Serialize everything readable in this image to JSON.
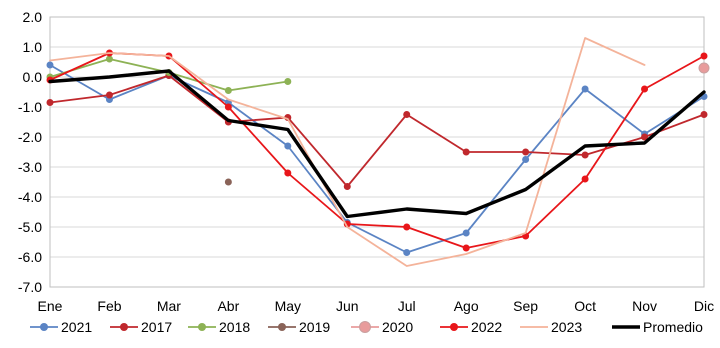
{
  "chart_data": {
    "type": "line",
    "categories": [
      "Ene",
      "Feb",
      "Mar",
      "Abr",
      "May",
      "Jun",
      "Jul",
      "Ago",
      "Sep",
      "Oct",
      "Nov",
      "Dic"
    ],
    "ylim": [
      -7.0,
      2.0
    ],
    "yticks": [
      2.0,
      1.0,
      0.0,
      -1.0,
      -2.0,
      -3.0,
      -4.0,
      -5.0,
      -6.0,
      -7.0
    ],
    "ytick_labels": [
      "2.0",
      "1.0",
      "0.0",
      "-1.0",
      "-2.0",
      "-3.0",
      "-4.0",
      "-5.0",
      "-6.0",
      "-7.0"
    ],
    "grid": true,
    "legend_position": "bottom",
    "series": [
      {
        "name": "2021",
        "color": "#5B84C4",
        "width": 1.8,
        "marker": true,
        "values": [
          0.4,
          -0.75,
          0.05,
          -0.85,
          -2.3,
          -4.85,
          -5.85,
          -5.2,
          -2.75,
          -0.4,
          -1.9,
          -0.65
        ]
      },
      {
        "name": "2017",
        "color": "#C0282D",
        "width": 1.8,
        "marker": true,
        "values": [
          -0.85,
          -0.6,
          0.05,
          -1.5,
          -1.35,
          -3.65,
          -1.25,
          -2.5,
          -2.5,
          -2.6,
          -2.0,
          -1.25
        ]
      },
      {
        "name": "2018",
        "color": "#8DB255",
        "width": 1.8,
        "marker": true,
        "values": [
          0.0,
          0.6,
          0.15,
          -0.45,
          -0.15,
          null,
          null,
          null,
          null,
          null,
          null,
          null
        ]
      },
      {
        "name": "2019",
        "color": "#8A6358",
        "width": 1.8,
        "marker": true,
        "values": [
          null,
          null,
          null,
          -3.5,
          null,
          null,
          null,
          null,
          null,
          null,
          null,
          null
        ]
      },
      {
        "name": "2020",
        "color": "#E89C9C",
        "width": 1.8,
        "marker": true,
        "big_marker": true,
        "values": [
          null,
          null,
          null,
          null,
          null,
          null,
          null,
          null,
          null,
          null,
          null,
          0.3
        ]
      },
      {
        "name": "2022",
        "color": "#E8161A",
        "width": 1.8,
        "marker": true,
        "values": [
          -0.1,
          0.8,
          0.7,
          -1.0,
          -3.2,
          -4.9,
          -5.0,
          -5.7,
          -5.3,
          -3.4,
          -0.4,
          0.7
        ]
      },
      {
        "name": "2023",
        "color": "#F4B39A",
        "width": 1.8,
        "marker": false,
        "values": [
          0.55,
          0.8,
          0.7,
          -0.75,
          -1.4,
          -5.0,
          -6.3,
          -5.9,
          -5.2,
          1.3,
          0.4,
          null
        ]
      },
      {
        "name": "Promedio",
        "color": "#000000",
        "width": 3.4,
        "marker": false,
        "values": [
          -0.15,
          0.0,
          0.2,
          -1.45,
          -1.75,
          -4.65,
          -4.4,
          -4.55,
          -3.75,
          -2.3,
          -2.2,
          -0.5
        ]
      }
    ]
  }
}
